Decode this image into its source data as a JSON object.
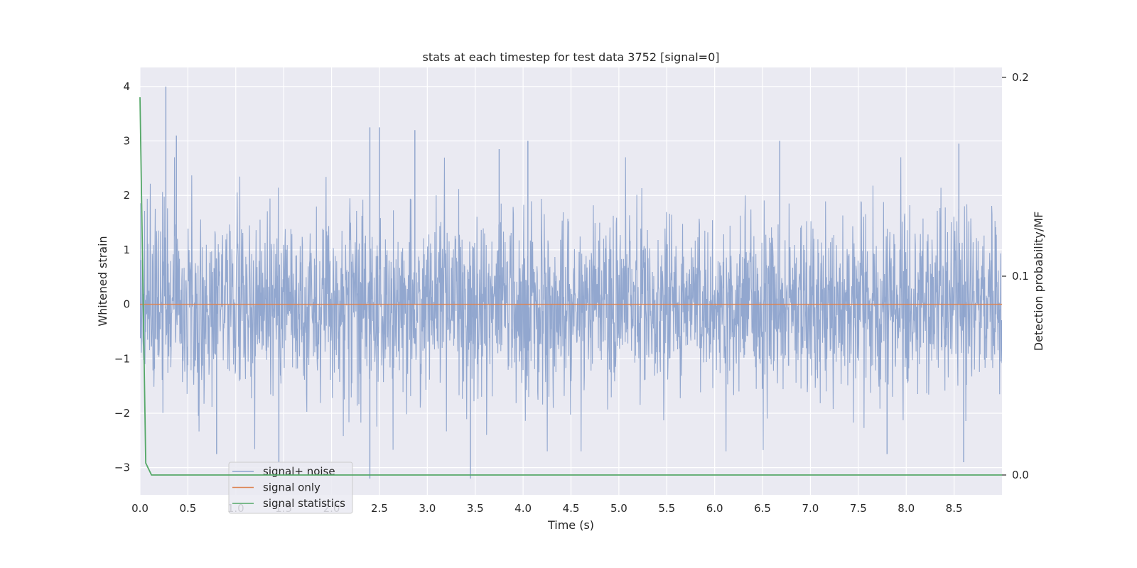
{
  "chart_data": {
    "type": "line",
    "title": "stats at each timestep for test data 3752 [signal=0]",
    "xlabel": "Time (s)",
    "ylabel": "Whitened strain",
    "y2label": "Detection probability/MF",
    "xlim": [
      0,
      9.0
    ],
    "ylim": [
      -3.5,
      4.35
    ],
    "y2lim": [
      -0.01,
      0.205
    ],
    "x_ticks": [
      "0.0",
      "0.5",
      "1.0",
      "1.5",
      "2.0",
      "2.5",
      "3.0",
      "3.5",
      "4.0",
      "4.5",
      "5.0",
      "5.5",
      "6.0",
      "6.5",
      "7.0",
      "7.5",
      "8.0",
      "8.5"
    ],
    "y_ticks": [
      "4",
      "3",
      "2",
      "1",
      "0",
      "−1",
      "−2",
      "−3"
    ],
    "y2_ticks": [
      "0.2",
      "0.1",
      "0.0"
    ],
    "grid": true,
    "legend_position": "lower-left",
    "series": [
      {
        "name": "signal+ noise",
        "axis": "left",
        "color": "#8da3cc",
        "description": "Dense whitened strain noise, mostly between -1.8 and 1.8 with spikes up to about 4.0 and down to about -3.2 across 0 to 9 s",
        "envelope": {
          "typical_min": -1.8,
          "typical_max": 1.8,
          "core_min": -1.0,
          "core_max": 1.0
        },
        "peaks": [
          {
            "x": 0.27,
            "y": 4.0
          },
          {
            "x": 0.38,
            "y": 3.1
          },
          {
            "x": 2.4,
            "y": 3.25
          },
          {
            "x": 2.5,
            "y": 3.25
          },
          {
            "x": 2.87,
            "y": 3.2
          },
          {
            "x": 3.75,
            "y": 2.85
          },
          {
            "x": 4.05,
            "y": 3.0
          },
          {
            "x": 6.68,
            "y": 3.0
          },
          {
            "x": 8.55,
            "y": 2.95
          }
        ],
        "troughs": [
          {
            "x": 2.4,
            "y": -3.2
          },
          {
            "x": 3.45,
            "y": -3.2
          },
          {
            "x": 8.6,
            "y": -2.9
          },
          {
            "x": 7.8,
            "y": -2.75
          },
          {
            "x": 0.8,
            "y": -2.75
          },
          {
            "x": 1.45,
            "y": -2.9
          }
        ]
      },
      {
        "name": "signal only",
        "axis": "left",
        "color": "#dd8452",
        "x": [
          0,
          9.0
        ],
        "y": [
          0,
          0
        ]
      },
      {
        "name": "signal statistics",
        "axis": "right",
        "color": "#55a868",
        "x": [
          0.0,
          0.06,
          0.12,
          0.2,
          9.0
        ],
        "y": [
          0.19,
          0.006,
          0.0,
          0.0,
          0.0
        ]
      }
    ]
  }
}
